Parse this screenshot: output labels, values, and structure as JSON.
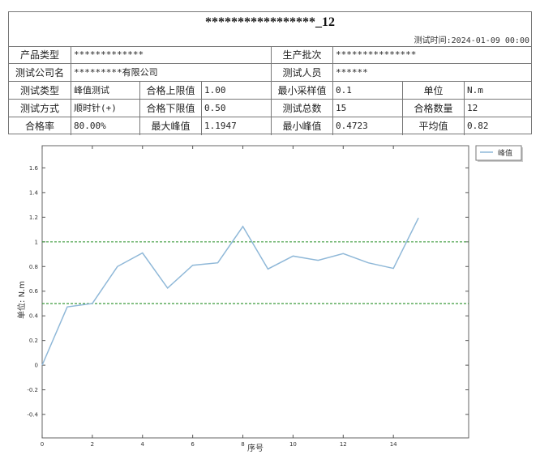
{
  "report": {
    "title": "*****************_12",
    "test_time": "测试时间:2024-01-09 00:00",
    "rows": [
      [
        {
          "t": "产品类型",
          "l": 1
        },
        {
          "t": "*************"
        },
        {
          "t": "生产批次",
          "l": 1
        },
        {
          "t": "***************"
        }
      ],
      [
        {
          "t": "测试公司名",
          "l": 1
        },
        {
          "t": "*********有限公司"
        },
        {
          "t": "测试人员",
          "l": 1
        },
        {
          "t": "******"
        }
      ],
      [
        {
          "t": "测试类型",
          "l": 1
        },
        {
          "t": "峰值测试"
        },
        {
          "t": "合格上限值",
          "l": 1
        },
        {
          "t": "1.00"
        },
        {
          "t": "最小采样值",
          "l": 1
        },
        {
          "t": "0.1"
        },
        {
          "t": "单位",
          "l": 1
        },
        {
          "t": "N.m"
        }
      ],
      [
        {
          "t": "测试方式",
          "l": 1
        },
        {
          "t": "顺时针(+)"
        },
        {
          "t": "合格下限值",
          "l": 1
        },
        {
          "t": "0.50"
        },
        {
          "t": "测试总数",
          "l": 1
        },
        {
          "t": "15"
        },
        {
          "t": "合格数量",
          "l": 1
        },
        {
          "t": "12"
        }
      ],
      [
        {
          "t": "合格率",
          "l": 1
        },
        {
          "t": "80.00%"
        },
        {
          "t": "最大峰值",
          "l": 1
        },
        {
          "t": "1.1947"
        },
        {
          "t": "最小峰值",
          "l": 1
        },
        {
          "t": "0.4723"
        },
        {
          "t": "平均值",
          "l": 1
        },
        {
          "t": "0.82"
        }
      ]
    ]
  },
  "chart_data": {
    "type": "line",
    "title": "",
    "xlabel": "序号",
    "ylabel": "单位: N.m",
    "xlim": [
      0,
      17
    ],
    "ylim": [
      -0.59,
      1.78
    ],
    "xticks": [
      0,
      2,
      4,
      6,
      8,
      10,
      12,
      14
    ],
    "yticks": [
      -0.4,
      -0.2,
      0,
      0.2,
      0.4,
      0.6,
      0.8,
      1,
      1.2,
      1.4,
      1.6
    ],
    "ytick_labels": [
      "-0.4",
      "-0.2",
      "0",
      "0.2",
      "0.4",
      "0.6",
      "0.8",
      "1",
      "1.2",
      "1.4",
      "1.6"
    ],
    "series": [
      {
        "name": "峰值",
        "color": "#8fb8d8",
        "x": [
          0,
          1,
          2,
          3,
          4,
          5,
          6,
          7,
          8,
          9,
          10,
          11,
          12,
          13,
          14,
          15
        ],
        "y": [
          0,
          0.4723,
          0.5,
          0.8,
          0.91,
          0.625,
          0.81,
          0.83,
          1.125,
          0.78,
          0.885,
          0.85,
          0.905,
          0.83,
          0.785,
          1.1947
        ]
      }
    ],
    "reference_lines": [
      {
        "y": 1.0,
        "color": "#3a9a3a",
        "style": "dashed"
      },
      {
        "y": 0.5,
        "color": "#3a9a3a",
        "style": "dashed"
      }
    ],
    "grid": false,
    "legend": "top-right-outside"
  }
}
